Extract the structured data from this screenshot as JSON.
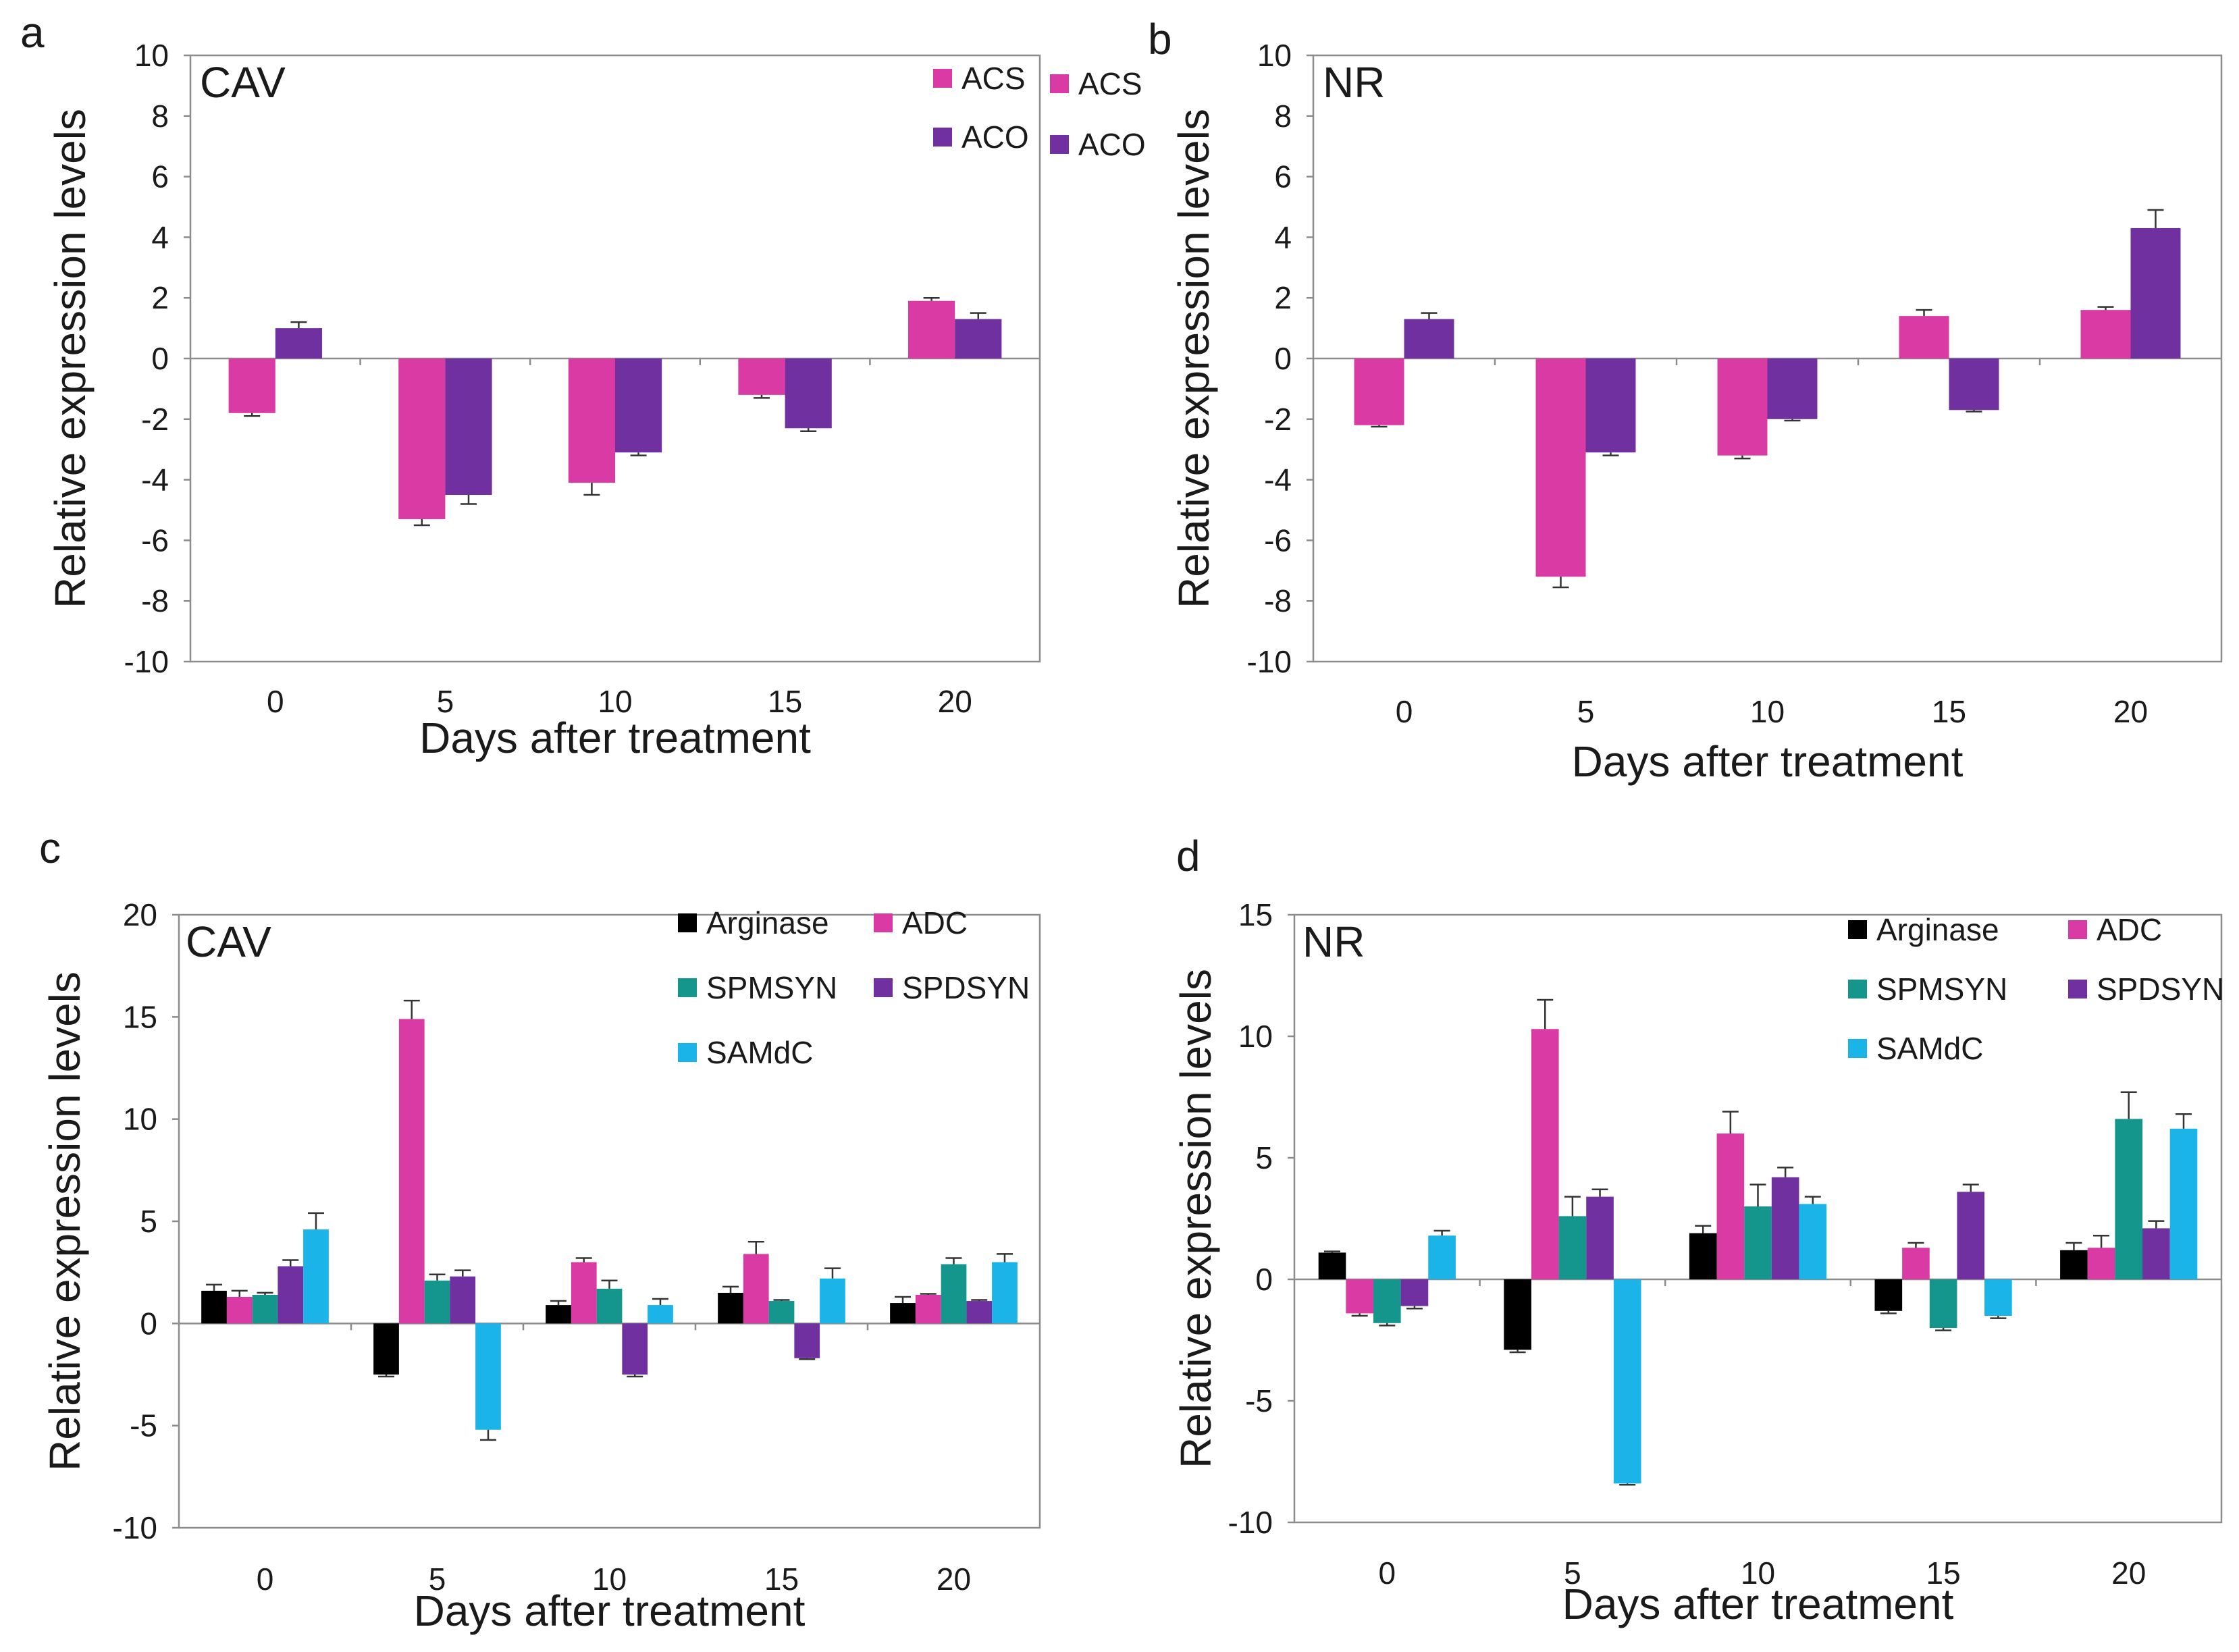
{
  "chart_data": [
    {
      "panel": "a",
      "type": "bar",
      "title": "CAV",
      "xlabel": "Days after treatment",
      "ylabel": "Relative expression levels",
      "ylim": [
        -10,
        10
      ],
      "yticks": [
        10,
        8,
        6,
        4,
        2,
        0,
        -2,
        -4,
        -6,
        -8,
        -10
      ],
      "categories": [
        "0",
        "5",
        "10",
        "15",
        "20"
      ],
      "legend_position": "top-right",
      "legend_columns": 1,
      "grid": false,
      "series": [
        {
          "name": "ACS",
          "color": "#d93aa3",
          "values": [
            -1.8,
            -5.3,
            -4.1,
            -1.2,
            1.9
          ],
          "errors": [
            0.1,
            0.2,
            0.4,
            0.1,
            0.1
          ]
        },
        {
          "name": "ACO",
          "color": "#7030a0",
          "values": [
            1.0,
            -4.5,
            -3.1,
            -2.3,
            1.3
          ],
          "errors": [
            0.2,
            0.3,
            0.1,
            0.1,
            0.2
          ]
        }
      ]
    },
    {
      "panel": "b",
      "type": "bar",
      "title": "NR",
      "xlabel": "Days after treatment",
      "ylabel": "Relative expression levels",
      "ylim": [
        -10,
        10
      ],
      "yticks": [
        10,
        8,
        6,
        4,
        2,
        0,
        -2,
        -4,
        -6,
        -8,
        -10
      ],
      "categories": [
        "0",
        "5",
        "10",
        "15",
        "20"
      ],
      "legend_position": "top-right",
      "legend_columns": 1,
      "grid": false,
      "series": [
        {
          "name": "ACS",
          "color": "#d93aa3",
          "values": [
            -2.2,
            -7.2,
            -3.2,
            1.4,
            1.6
          ],
          "errors": [
            0.05,
            0.35,
            0.1,
            0.2,
            0.1
          ]
        },
        {
          "name": "ACO",
          "color": "#7030a0",
          "values": [
            1.3,
            -3.1,
            -2.0,
            -1.7,
            4.3
          ],
          "errors": [
            0.2,
            0.1,
            0.05,
            0.05,
            0.6
          ]
        }
      ]
    },
    {
      "panel": "c",
      "type": "bar",
      "title": "CAV",
      "xlabel": "Days after treatment",
      "ylabel": "Relative expression levels",
      "ylim": [
        -10,
        20
      ],
      "yticks": [
        20,
        15,
        10,
        5,
        0,
        -5,
        -10
      ],
      "categories": [
        "0",
        "5",
        "10",
        "15",
        "20"
      ],
      "legend_position": "top-right",
      "legend_columns": 2,
      "grid": false,
      "series": [
        {
          "name": "Arginase",
          "color": "#000000",
          "values": [
            1.6,
            -2.5,
            0.9,
            1.5,
            1.0
          ],
          "errors": [
            0.3,
            0.1,
            0.2,
            0.3,
            0.3
          ]
        },
        {
          "name": "ADC",
          "color": "#d93aa3",
          "values": [
            1.3,
            14.9,
            3.0,
            3.4,
            1.4
          ],
          "errors": [
            0.3,
            0.9,
            0.2,
            0.6,
            0.05
          ]
        },
        {
          "name": "SPMSYN",
          "color": "#14968c",
          "values": [
            1.4,
            2.1,
            1.7,
            1.1,
            2.9
          ],
          "errors": [
            0.1,
            0.3,
            0.4,
            0.05,
            0.3
          ]
        },
        {
          "name": "SPDSYN",
          "color": "#7030a0",
          "values": [
            2.8,
            2.3,
            -2.5,
            -1.7,
            1.1
          ],
          "errors": [
            0.3,
            0.3,
            0.1,
            0.05,
            0.05
          ]
        },
        {
          "name": "SAMdC",
          "color": "#1ab4e8",
          "values": [
            4.6,
            -5.2,
            0.9,
            2.2,
            3.0
          ],
          "errors": [
            0.8,
            0.5,
            0.3,
            0.5,
            0.4
          ]
        }
      ]
    },
    {
      "panel": "d",
      "type": "bar",
      "title": "NR",
      "xlabel": "Days after treatment",
      "ylabel": "Relative expression levels",
      "ylim": [
        -10,
        15
      ],
      "yticks": [
        15,
        10,
        5,
        0,
        -5,
        -10
      ],
      "categories": [
        "0",
        "5",
        "10",
        "15",
        "20"
      ],
      "legend_position": "top-right",
      "legend_columns": 2,
      "grid": false,
      "series": [
        {
          "name": "Arginase",
          "color": "#000000",
          "values": [
            1.1,
            -2.9,
            1.9,
            -1.3,
            1.2
          ],
          "errors": [
            0.05,
            0.1,
            0.3,
            0.1,
            0.3
          ]
        },
        {
          "name": "ADC",
          "color": "#d93aa3",
          "values": [
            -1.4,
            10.3,
            6.0,
            1.3,
            1.3
          ],
          "errors": [
            0.1,
            1.2,
            0.9,
            0.2,
            0.5
          ]
        },
        {
          "name": "SPMSYN",
          "color": "#14968c",
          "values": [
            -1.8,
            2.6,
            3.0,
            -2.0,
            6.6
          ],
          "errors": [
            0.1,
            0.8,
            0.9,
            0.1,
            1.1
          ]
        },
        {
          "name": "SPDSYN",
          "color": "#7030a0",
          "values": [
            -1.1,
            3.4,
            4.2,
            3.6,
            2.1
          ],
          "errors": [
            0.1,
            0.3,
            0.4,
            0.3,
            0.3
          ]
        },
        {
          "name": "SAMdC",
          "color": "#1ab4e8",
          "values": [
            1.8,
            -8.4,
            3.1,
            -1.5,
            6.2
          ],
          "errors": [
            0.2,
            0.05,
            0.3,
            0.1,
            0.6
          ]
        }
      ]
    }
  ]
}
